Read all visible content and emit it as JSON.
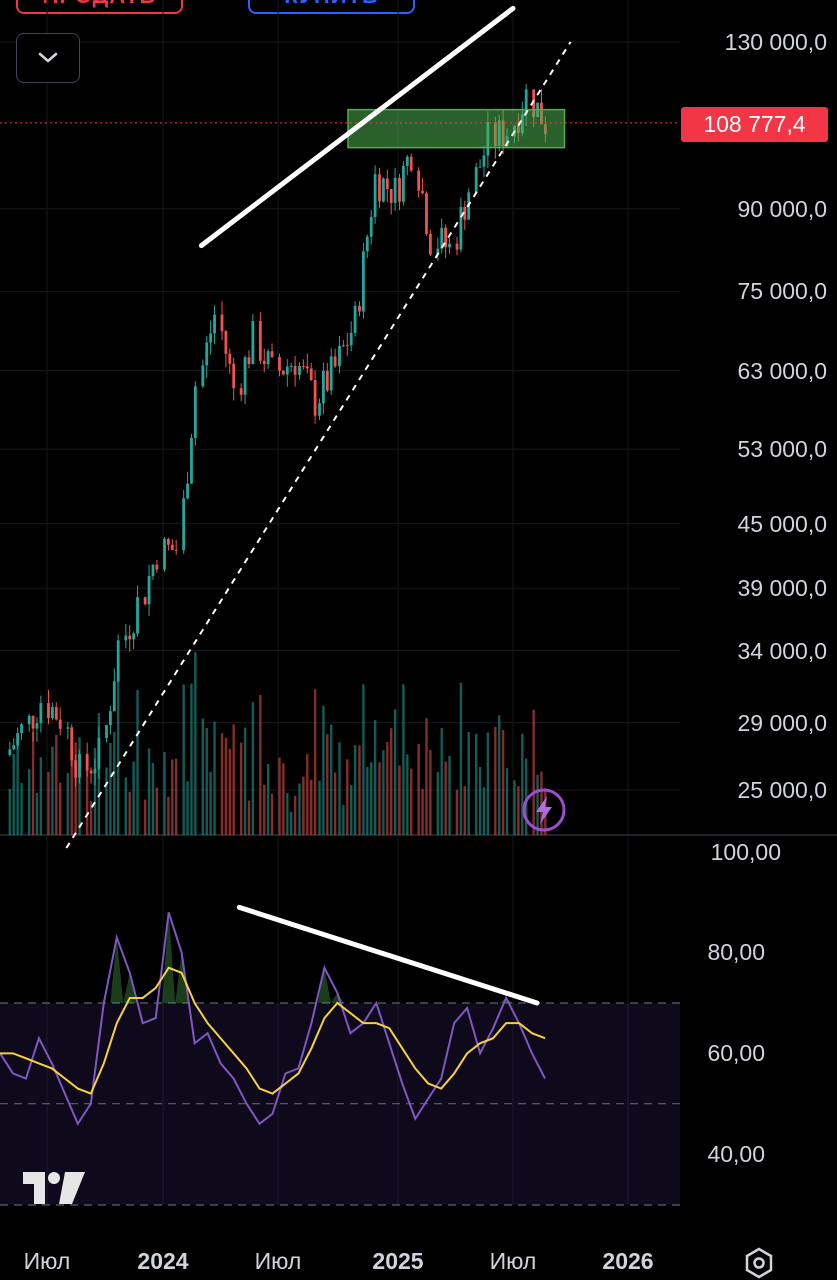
{
  "buttons": {
    "sell": "ПРОДАТЬ",
    "buy": "КУПИТЬ"
  },
  "current_price": "108 777,4",
  "price_axis": [
    "130 000,0",
    "90 000,0",
    "75 000,0",
    "63 000,0",
    "53 000,0",
    "45 000,0",
    "39 000,0",
    "34 000,0",
    "29 000,0",
    "25 000,0"
  ],
  "rsi_axis": [
    "100,00",
    "80,00",
    "60,00",
    "40,00"
  ],
  "time_axis": [
    {
      "label": "Июл",
      "bold": false
    },
    {
      "label": "2024",
      "bold": true
    },
    {
      "label": "Июл",
      "bold": false
    },
    {
      "label": "2025",
      "bold": true
    },
    {
      "label": "Июл",
      "bold": false
    },
    {
      "label": "2026",
      "bold": true
    }
  ],
  "icons": [
    "chevron-down-icon",
    "lightning-icon",
    "tradingview-logo",
    "settings-icon"
  ],
  "colors": {
    "up": "#26a69a",
    "down": "#ef5350",
    "rsi": "#7e57c2",
    "rsi_ma": "#f5d142",
    "price_line": "#f23645",
    "zone": "#4caf50"
  },
  "chart_data": [
    {
      "type": "candlestick",
      "scale": "log",
      "ylim": [
        22000,
        150000
      ],
      "x_range": [
        "2023-05",
        "2026-02"
      ],
      "last_price": 108777.4,
      "key_prices": [
        [
          "2023-05",
          27000,
          28500
        ],
        [
          "2023-06",
          28500,
          30500
        ],
        [
          "2023-07",
          30500,
          29300
        ],
        [
          "2023-08",
          29300,
          26000
        ],
        [
          "2023-09",
          26000,
          27000
        ],
        [
          "2023-10",
          27000,
          34500
        ],
        [
          "2023-11",
          34500,
          37700
        ],
        [
          "2023-12",
          37700,
          42300
        ],
        [
          "2024-01",
          42300,
          42600
        ],
        [
          "2024-02",
          42600,
          61200
        ],
        [
          "2024-03",
          61200,
          71300
        ],
        [
          "2024-04",
          71300,
          60600
        ],
        [
          "2024-05",
          60600,
          67500
        ],
        [
          "2024-06",
          67500,
          62700
        ],
        [
          "2024-07",
          62700,
          64600
        ],
        [
          "2024-08",
          64600,
          59000
        ],
        [
          "2024-09",
          59000,
          63300
        ],
        [
          "2024-10",
          63300,
          70200
        ],
        [
          "2024-11",
          70200,
          96400
        ],
        [
          "2024-12",
          96400,
          93400
        ],
        [
          "2025-01",
          93400,
          102400
        ],
        [
          "2025-02",
          102400,
          84300
        ],
        [
          "2025-03",
          84300,
          82500
        ],
        [
          "2025-04",
          82500,
          94200
        ],
        [
          "2025-05",
          94200,
          104600
        ],
        [
          "2025-06",
          104600,
          107100
        ],
        [
          "2025-07",
          107100,
          115700
        ],
        [
          "2025-08",
          115700,
          108777.4
        ]
      ],
      "annotations": {
        "resistance_line": {
          "from": [
            "2024-03",
            83000
          ],
          "to": [
            "2025-07",
            140000
          ]
        },
        "support_line_dashed": {
          "from": [
            "2023-08",
            22000
          ],
          "to": [
            "2025-10",
            130000
          ]
        },
        "zone": {
          "from": "2024-11",
          "to": "2025-10",
          "low": 103000,
          "high": 112000
        }
      }
    },
    {
      "type": "line",
      "indicator": "RSI",
      "ylim": [
        30,
        100
      ],
      "band": [
        50,
        70
      ],
      "series": [
        {
          "values": [
            60,
            56,
            55,
            63,
            58,
            52,
            46,
            50,
            70,
            83,
            76,
            66,
            67,
            88,
            80,
            62,
            64,
            58,
            55,
            50,
            46,
            48,
            56,
            57,
            66,
            77,
            72,
            64,
            66,
            70,
            62,
            54,
            47,
            51,
            55,
            66,
            69,
            60,
            65,
            71,
            66,
            60,
            55
          ]
        },
        {
          "values": [
            60,
            60,
            59,
            58,
            57,
            55,
            53,
            52,
            58,
            66,
            71,
            71,
            73,
            77,
            76,
            70,
            66,
            63,
            60,
            57,
            53,
            52,
            54,
            56,
            61,
            67,
            70,
            68,
            66,
            66,
            65,
            61,
            57,
            54,
            53,
            56,
            60,
            62,
            63,
            66,
            66,
            64,
            63
          ]
        }
      ],
      "annotations": {
        "divergence_line": {
          "from": [
            "2024-03",
            89
          ],
          "to": [
            "2025-07",
            70
          ]
        }
      }
    }
  ]
}
